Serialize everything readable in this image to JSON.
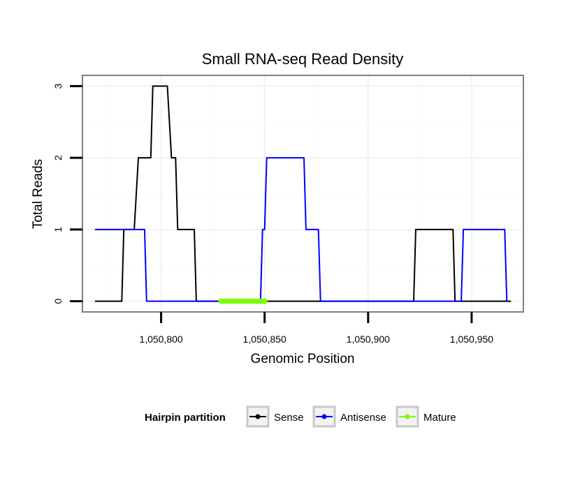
{
  "chart_data": {
    "type": "line",
    "title": "Small RNA-seq Read Density",
    "xlabel": "Genomic Position",
    "ylabel": "Total Reads",
    "xlim": [
      1050762,
      1050975
    ],
    "ylim": [
      -0.15,
      3.15
    ],
    "x_ticks": [
      1050800,
      1050850,
      1050900,
      1050950
    ],
    "x_tick_labels": [
      "1,050,800",
      "1,050,850",
      "1,050,900",
      "1,050,950"
    ],
    "y_ticks": [
      0,
      1,
      2,
      3
    ],
    "y_tick_labels": [
      "0",
      "1",
      "2",
      "3"
    ],
    "grid": true,
    "legend": {
      "title": "Hairpin partition",
      "position": "bottom"
    },
    "series": [
      {
        "name": "Sense",
        "color": "#000000",
        "points": [
          [
            1050768,
            0
          ],
          [
            1050781,
            0
          ],
          [
            1050782,
            1
          ],
          [
            1050787,
            1
          ],
          [
            1050789,
            2
          ],
          [
            1050795,
            2
          ],
          [
            1050796,
            3
          ],
          [
            1050803,
            3
          ],
          [
            1050805,
            2
          ],
          [
            1050807,
            2
          ],
          [
            1050808,
            1
          ],
          [
            1050816,
            1
          ],
          [
            1050817,
            0
          ],
          [
            1050922,
            0
          ],
          [
            1050923,
            1
          ],
          [
            1050941,
            1
          ],
          [
            1050942,
            0
          ],
          [
            1050969,
            0
          ]
        ]
      },
      {
        "name": "Antisense",
        "color": "#0000ff",
        "points": [
          [
            1050768,
            1
          ],
          [
            1050792,
            1
          ],
          [
            1050793,
            0
          ],
          [
            1050848,
            0
          ],
          [
            1050849,
            1
          ],
          [
            1050850,
            1
          ],
          [
            1050851,
            2
          ],
          [
            1050869,
            2
          ],
          [
            1050870,
            1
          ],
          [
            1050876,
            1
          ],
          [
            1050877,
            0
          ],
          [
            1050922,
            0
          ],
          [
            1050941,
            0
          ],
          [
            1050945,
            0
          ],
          [
            1050946,
            1
          ],
          [
            1050966,
            1
          ],
          [
            1050967,
            0
          ]
        ]
      },
      {
        "name": "Mature",
        "color": "#7cfc00",
        "points": [
          [
            1050829,
            0
          ],
          [
            1050850,
            0
          ]
        ]
      }
    ]
  }
}
